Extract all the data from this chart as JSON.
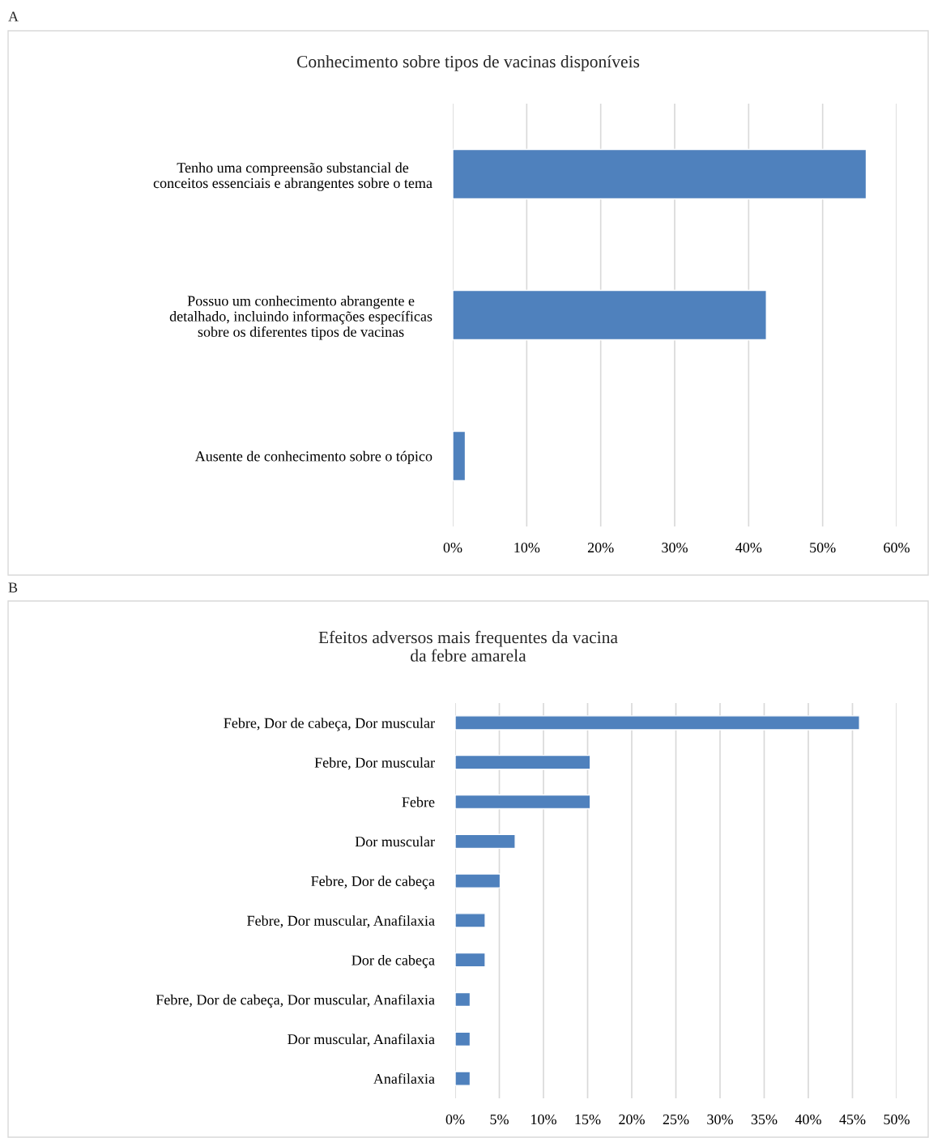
{
  "chart_data": [
    {
      "type": "bar",
      "orientation": "horizontal",
      "title": "Conhecimento sobre tipos de vacinas disponíveis",
      "annotations": [
        "A"
      ],
      "categories": [
        "Tenho uma compreensão substancial de\nconceitos essenciais e abrangentes sobre o tema",
        "Possuo um conhecimento abrangente e\ndetalhado, incluindo informações específicas\nsobre os diferentes tipos de vacinas",
        "Ausente de conhecimento sobre o tópico"
      ],
      "values": [
        55.9,
        42.4,
        1.7
      ],
      "color": "#4f81bd",
      "xlim": [
        0,
        60
      ],
      "xticks": [
        {
          "value": 0,
          "label": "0%"
        },
        {
          "value": 10,
          "label": "10%"
        },
        {
          "value": 20,
          "label": "20%"
        },
        {
          "value": 30,
          "label": "30%"
        },
        {
          "value": 40,
          "label": "40%"
        },
        {
          "value": 50,
          "label": "50%"
        },
        {
          "value": 60,
          "label": "60%"
        }
      ],
      "grid": "x"
    },
    {
      "type": "bar",
      "orientation": "horizontal",
      "title": "Efeitos adversos mais frequentes da vacina\nda febre amarela",
      "annotations": [
        "B"
      ],
      "categories": [
        "Febre, Dor de cabeça, Dor muscular",
        "Febre, Dor muscular",
        "Febre",
        "Dor muscular",
        "Febre, Dor de cabeça",
        "Febre, Dor muscular, Anafilaxia",
        "Dor de cabeça",
        "Febre, Dor de cabeça, Dor muscular, Anafilaxia",
        "Dor muscular, Anafilaxia",
        "Anafilaxia"
      ],
      "values": [
        45.8,
        15.3,
        15.3,
        6.8,
        5.1,
        3.4,
        3.4,
        1.7,
        1.7,
        1.7
      ],
      "color": "#4f81bd",
      "xlim": [
        0,
        50
      ],
      "xticks": [
        {
          "value": 0,
          "label": "0%"
        },
        {
          "value": 5,
          "label": "5%"
        },
        {
          "value": 10,
          "label": "10%"
        },
        {
          "value": 15,
          "label": "15%"
        },
        {
          "value": 20,
          "label": "20%"
        },
        {
          "value": 25,
          "label": "25%"
        },
        {
          "value": 30,
          "label": "30%"
        },
        {
          "value": 35,
          "label": "35%"
        },
        {
          "value": 40,
          "label": "40%"
        },
        {
          "value": 45,
          "label": "45%"
        },
        {
          "value": 50,
          "label": "50%"
        }
      ],
      "grid": "x"
    }
  ]
}
